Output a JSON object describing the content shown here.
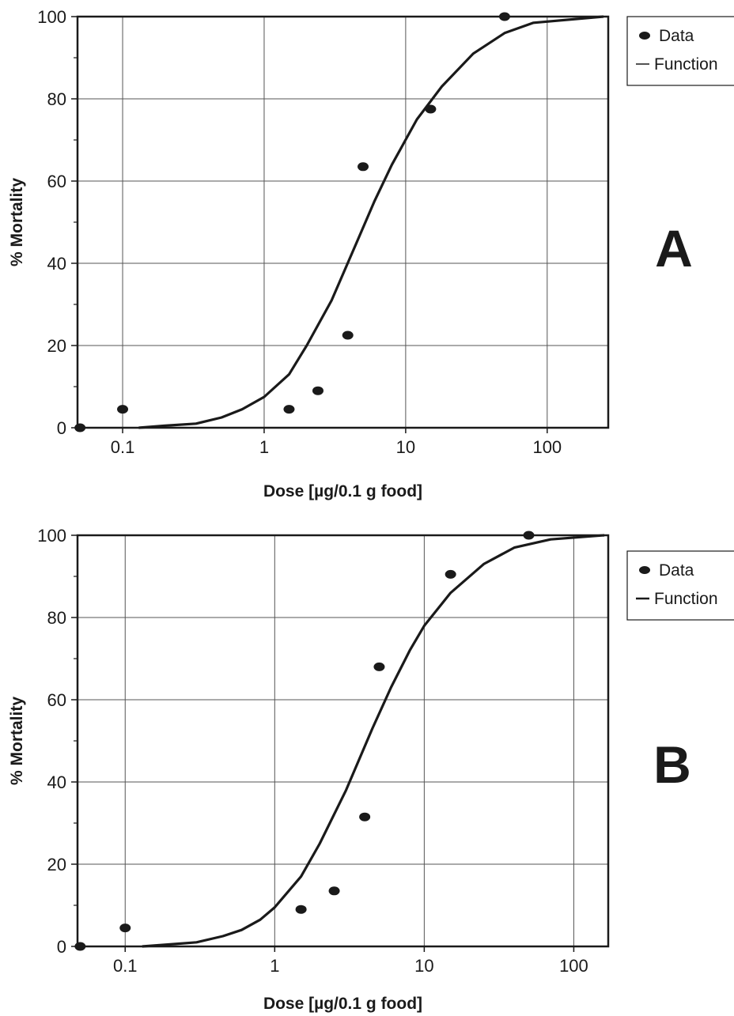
{
  "chart_data": [
    {
      "type": "scatter",
      "panel_label": "A",
      "xlabel": "Dose [µg/0.1 g food]",
      "ylabel": "% Mortality",
      "x_scale": "log",
      "xlim": [
        0.048,
        270
      ],
      "ylim": [
        0,
        100
      ],
      "x_ticks": [
        0.1,
        1,
        10,
        100
      ],
      "x_tick_labels": [
        "0.1",
        "1",
        "10",
        "100"
      ],
      "y_ticks": [
        0,
        20,
        40,
        60,
        80,
        100
      ],
      "y_tick_labels": [
        "0",
        "20",
        "40",
        "60",
        "80",
        "100"
      ],
      "grid": true,
      "legend_position": "top-right outside",
      "series": [
        {
          "name": "Data",
          "kind": "points",
          "x": [
            0.05,
            0.1,
            1.5,
            2.4,
            3.9,
            5.0,
            15,
            50
          ],
          "y": [
            0,
            4.5,
            4.5,
            9,
            22.5,
            63.5,
            77.5,
            100
          ]
        },
        {
          "name": "Function",
          "kind": "curve",
          "x": [
            0.13,
            0.2,
            0.33,
            0.5,
            0.7,
            1.0,
            1.5,
            2.0,
            3.0,
            4.5,
            6.0,
            8.0,
            12,
            18,
            30,
            50,
            80,
            250
          ],
          "y": [
            0,
            0.5,
            1,
            2.5,
            4.5,
            7.5,
            13,
            20,
            31,
            45,
            55,
            64,
            75,
            83,
            91,
            96,
            98.5,
            100
          ]
        }
      ],
      "colors": {
        "marks": "#1a1a1a",
        "grid": "#555555"
      }
    },
    {
      "type": "scatter",
      "panel_label": "B",
      "xlabel": "Dose [µg/0.1 g food]",
      "ylabel": "% Mortality",
      "x_scale": "log",
      "xlim": [
        0.048,
        170
      ],
      "ylim": [
        0,
        100
      ],
      "x_ticks": [
        0.1,
        1,
        10,
        100
      ],
      "x_tick_labels": [
        "0.1",
        "1",
        "10",
        "100"
      ],
      "y_ticks": [
        0,
        20,
        40,
        60,
        80,
        100
      ],
      "y_tick_labels": [
        "0",
        "20",
        "40",
        "60",
        "80",
        "100"
      ],
      "grid": true,
      "legend_position": "top-right outside",
      "series": [
        {
          "name": "Data",
          "kind": "points",
          "x": [
            0.05,
            0.1,
            1.5,
            2.5,
            4.0,
            5.0,
            15,
            50
          ],
          "y": [
            0,
            4.5,
            9,
            13.5,
            31.5,
            68,
            90.5,
            100
          ]
        },
        {
          "name": "Function",
          "kind": "curve",
          "x": [
            0.13,
            0.2,
            0.3,
            0.45,
            0.6,
            0.8,
            1.0,
            1.5,
            2.0,
            3.0,
            4.5,
            6.0,
            8.0,
            10,
            15,
            25,
            40,
            70,
            160
          ],
          "y": [
            0,
            0.5,
            1,
            2.5,
            4,
            6.5,
            9.5,
            17,
            25,
            38,
            53,
            63,
            72,
            78,
            86,
            93,
            97,
            99,
            100
          ]
        }
      ],
      "colors": {
        "marks": "#1a1a1a",
        "grid": "#555555"
      }
    }
  ]
}
